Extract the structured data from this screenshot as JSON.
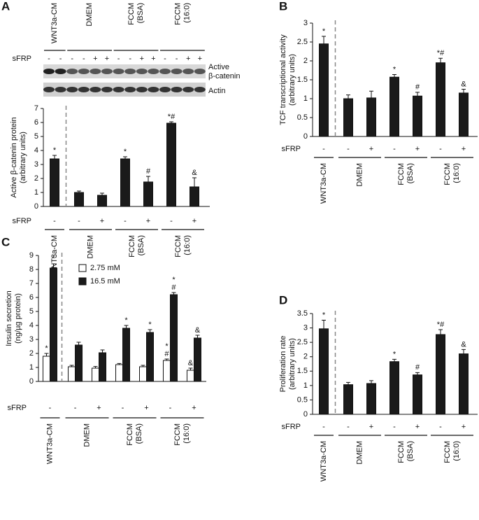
{
  "blot": {
    "groups": [
      [
        "WNT3a-CM"
      ],
      [
        "DMEM"
      ],
      [
        "FCCM",
        "(BSA)"
      ],
      [
        "FCCM",
        "(16:0)"
      ]
    ],
    "row_label": "sFRP",
    "lanes": [
      "-",
      "-",
      "-",
      "-",
      "+",
      "+",
      "-",
      "-",
      "+",
      "+",
      "-",
      "-",
      "+",
      "+"
    ],
    "bands": [
      [
        "Active",
        "β-catenin"
      ],
      [
        "Actin"
      ]
    ]
  },
  "chart_data": [
    {
      "type": "bar",
      "panel": "A",
      "ylabel": [
        "Active β-catenin protein",
        "(arbitrary units)"
      ],
      "row_label": "sFRP",
      "categories": [
        "-",
        "-",
        "+",
        "-",
        "+",
        "-",
        "+"
      ],
      "groups": [
        [
          "WNT3a-CM"
        ],
        [
          "DMEM"
        ],
        [
          "FCCM",
          "(BSA)"
        ],
        [
          "FCCM",
          "(16:0)"
        ]
      ],
      "values": [
        3.4,
        1.0,
        0.8,
        3.4,
        1.75,
        5.95,
        1.4
      ],
      "errors": [
        0.25,
        0.1,
        0.15,
        0.15,
        0.4,
        0.1,
        0.65
      ],
      "annotations": [
        [
          "*"
        ],
        null,
        null,
        [
          "*"
        ],
        [
          "#"
        ],
        [
          "*#"
        ],
        [
          "&"
        ]
      ],
      "color": "#1a1a1a",
      "ylim": [
        0,
        7
      ],
      "yticks": [
        0,
        1,
        2,
        3,
        4,
        5,
        6,
        7
      ]
    },
    {
      "type": "bar",
      "panel": "B",
      "ylabel": [
        "TCF transcriptional activity",
        "(arbitrary units)"
      ],
      "row_label": "sFRP",
      "categories": [
        "-",
        "-",
        "+",
        "-",
        "+",
        "-",
        "+"
      ],
      "groups": [
        [
          "WNT3a-CM"
        ],
        [
          "DMEM"
        ],
        [
          "FCCM",
          "(BSA)"
        ],
        [
          "FCCM",
          "(16:0)"
        ]
      ],
      "values": [
        2.45,
        1.0,
        1.02,
        1.57,
        1.07,
        1.95,
        1.15
      ],
      "errors": [
        0.2,
        0.1,
        0.18,
        0.07,
        0.1,
        0.12,
        0.1
      ],
      "annotations": [
        [
          "*"
        ],
        null,
        null,
        [
          "*"
        ],
        [
          "#"
        ],
        [
          "*#"
        ],
        [
          "&"
        ]
      ],
      "color": "#1a1a1a",
      "ylim": [
        0,
        3
      ],
      "yticks": [
        0,
        0.5,
        1,
        1.5,
        2,
        2.5,
        3
      ]
    },
    {
      "type": "grouped_bar",
      "panel": "C",
      "ylabel": [
        "Insulin secretion",
        "(ng/µg protein)"
      ],
      "row_label": "sFRP",
      "categories": [
        "-",
        "-",
        "+",
        "-",
        "+",
        "-",
        "+"
      ],
      "groups": [
        [
          "WNT3a-CM"
        ],
        [
          "DMEM"
        ],
        [
          "FCCM",
          "(BSA)"
        ],
        [
          "FCCM",
          "(16:0)"
        ]
      ],
      "series": [
        {
          "name": "2.75 mM",
          "color": "#ffffff",
          "values": [
            1.8,
            1.05,
            0.95,
            1.2,
            1.05,
            1.5,
            0.8
          ],
          "errors": [
            0.2,
            0.1,
            0.12,
            0.08,
            0.1,
            0.1,
            0.15
          ],
          "annotations": [
            [
              "*"
            ],
            null,
            null,
            null,
            null,
            [
              "*",
              "#"
            ],
            [
              "&"
            ]
          ]
        },
        {
          "name": "16.5 mM",
          "color": "#1a1a1a",
          "values": [
            8.1,
            2.6,
            2.05,
            3.8,
            3.5,
            6.2,
            3.1
          ],
          "errors": [
            0.3,
            0.2,
            0.2,
            0.2,
            0.2,
            0.15,
            0.2
          ],
          "annotations": [
            [
              "*"
            ],
            null,
            null,
            [
              "*"
            ],
            [
              "*"
            ],
            [
              "*",
              "#"
            ],
            [
              "&"
            ]
          ]
        }
      ],
      "ylim": [
        0,
        9
      ],
      "yticks": [
        0,
        1,
        2,
        3,
        4,
        5,
        6,
        7,
        8,
        9
      ]
    },
    {
      "type": "bar",
      "panel": "D",
      "ylabel": [
        "Proliferation rate",
        "(arbitrary units)"
      ],
      "row_label": "sFRP",
      "categories": [
        "-",
        "-",
        "+",
        "-",
        "+",
        "-",
        "+"
      ],
      "groups": [
        [
          "WNT3a-CM"
        ],
        [
          "DMEM"
        ],
        [
          "FCCM",
          "(BSA)"
        ],
        [
          "FCCM",
          "(16:0)"
        ]
      ],
      "values": [
        2.97,
        1.03,
        1.07,
        1.83,
        1.37,
        2.77,
        2.1
      ],
      "errors": [
        0.3,
        0.08,
        0.1,
        0.08,
        0.08,
        0.17,
        0.15
      ],
      "annotations": [
        [
          "*"
        ],
        null,
        null,
        [
          "*"
        ],
        [
          "#"
        ],
        [
          "*#"
        ],
        [
          "&"
        ]
      ],
      "color": "#1a1a1a",
      "ylim": [
        0,
        3.5
      ],
      "yticks": [
        0,
        0.5,
        1,
        1.5,
        2,
        2.5,
        3,
        3.5
      ]
    }
  ]
}
